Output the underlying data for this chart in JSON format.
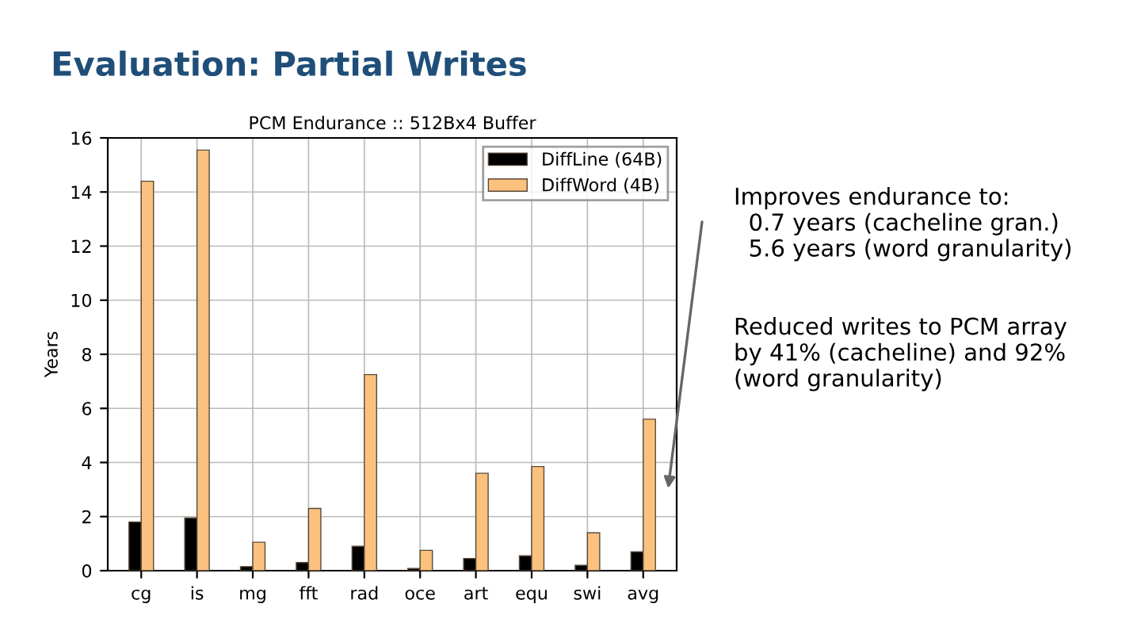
{
  "chart_data": {
    "type": "bar",
    "title": "Evaluation: Partial Writes",
    "subtitle": "PCM Endurance :: 512Bx4 Buffer",
    "ylabel": "Years",
    "categories": [
      "cg",
      "is",
      "mg",
      "fft",
      "rad",
      "oce",
      "art",
      "equ",
      "swi",
      "avg"
    ],
    "series": [
      {
        "name": "DiffLine (64B)",
        "color": "#000000",
        "values": [
          1.8,
          1.95,
          0.15,
          0.3,
          0.9,
          0.08,
          0.45,
          0.55,
          0.2,
          0.7
        ]
      },
      {
        "name": "DiffWord (4B)",
        "color": "#fbc17e",
        "values": [
          14.4,
          15.55,
          1.05,
          2.3,
          7.25,
          0.75,
          3.6,
          3.85,
          1.4,
          5.6
        ]
      }
    ],
    "ylim": [
      0,
      16
    ],
    "yticks": [
      0,
      2,
      4,
      6,
      8,
      10,
      12,
      14,
      16
    ],
    "grid": true,
    "legend": "top right",
    "annotations": [
      "Improves endurance to:\n  0.7 years (cacheline gran.)\n  5.6 years (word granularity)",
      "Reduced writes to PCM array\nby 41% (cacheline) and 92%\n(word granularity)"
    ]
  }
}
